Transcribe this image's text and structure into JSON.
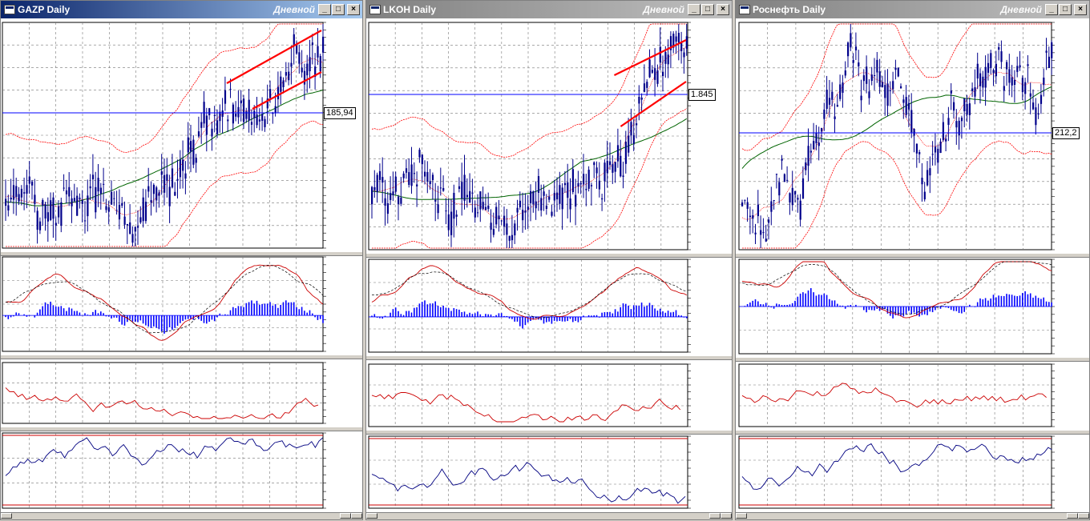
{
  "windows": [
    {
      "title": "GAZP Daily",
      "period": "Дневной",
      "price_label": "185,94",
      "active": true,
      "seed": 11
    },
    {
      "title": "LKOH Daily",
      "period": "Дневной",
      "price_label": "1.845",
      "active": false,
      "seed": 27
    },
    {
      "title": "Роснефть Daily",
      "period": "Дневной",
      "price_label": "212,2",
      "active": false,
      "seed": 43
    }
  ],
  "buttons": {
    "minimize": "_",
    "maximize": "□",
    "close": "×"
  },
  "colors": {
    "candle": "#00008b",
    "bollinger": "#ff0000",
    "ma": "#006400",
    "level": "#0000ff",
    "macd_hist": "#0000ff",
    "rsi": "#cc0000",
    "stoch": "#000080",
    "channel": "#ff0000"
  },
  "icons": [
    "window-icon",
    "minimize-icon",
    "maximize-icon",
    "close-icon"
  ]
}
